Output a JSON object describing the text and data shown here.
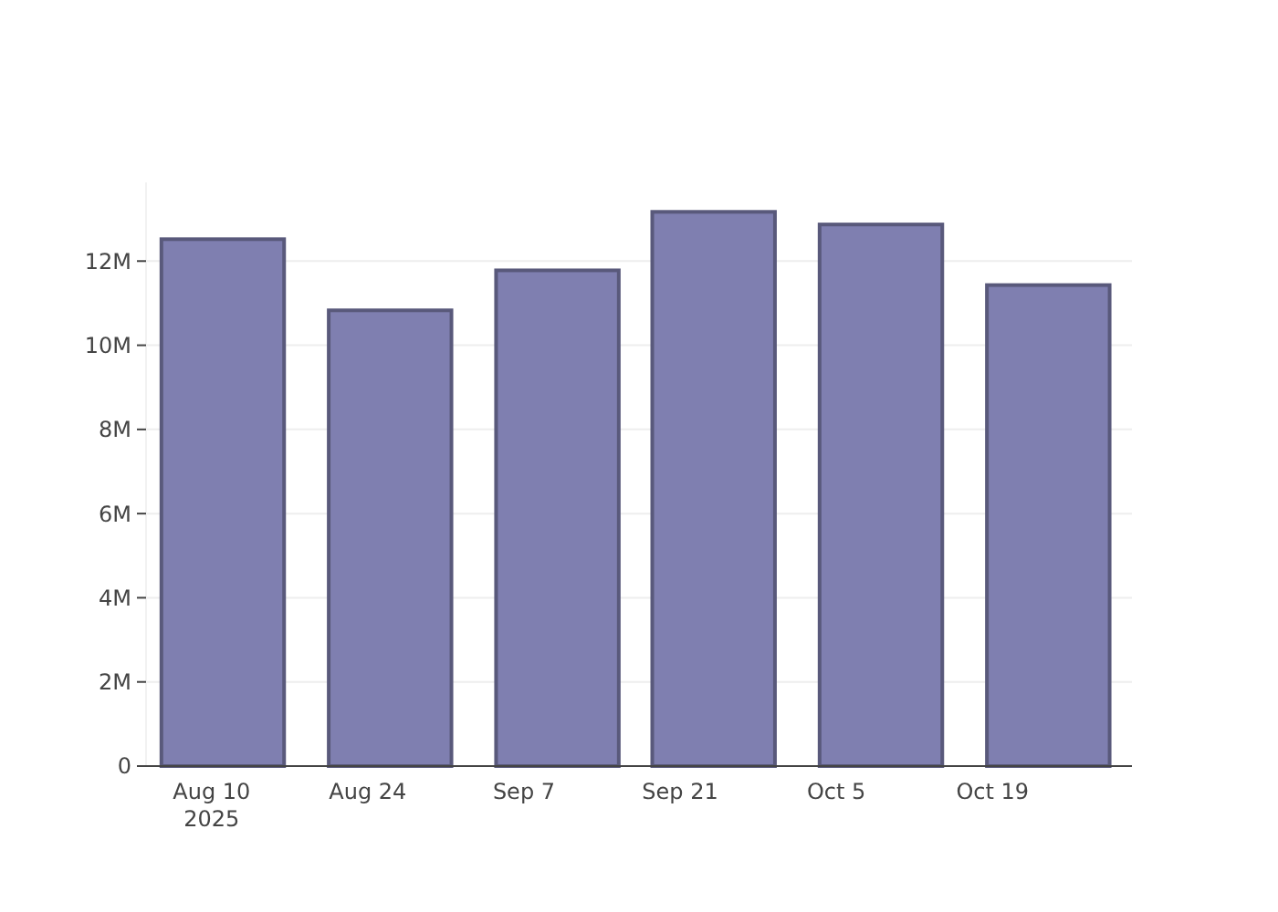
{
  "chart_data": {
    "type": "bar",
    "x": [
      "2025-08-11",
      "2025-08-26",
      "2025-09-10",
      "2025-09-24",
      "2025-10-09",
      "2025-10-24"
    ],
    "values": [
      12520000,
      10830000,
      11780000,
      13170000,
      12870000,
      11430000
    ],
    "color": "#7f7fb0",
    "xlim": [
      "2025-08-04T03:00",
      "2025-10-31T12:00"
    ],
    "xticks": [
      {
        "value": "2025-08-10",
        "label": "Aug 10\n2025"
      },
      {
        "value": "2025-08-24",
        "label": "Aug 24"
      },
      {
        "value": "2025-09-07",
        "label": "Sep 7"
      },
      {
        "value": "2025-09-21",
        "label": "Sep 21"
      },
      {
        "value": "2025-10-05",
        "label": "Oct 5"
      },
      {
        "value": "2025-10-19",
        "label": "Oct 19"
      }
    ],
    "yticks": [
      {
        "value": 0,
        "label": "0"
      },
      {
        "value": 2000000,
        "label": "2M"
      },
      {
        "value": 4000000,
        "label": "4M"
      },
      {
        "value": 6000000,
        "label": "6M"
      },
      {
        "value": 8000000,
        "label": "8M"
      },
      {
        "value": 10000000,
        "label": "10M"
      },
      {
        "value": 12000000,
        "label": "12M"
      }
    ],
    "ylim": [
      0,
      13870000
    ],
    "grid": "y"
  }
}
